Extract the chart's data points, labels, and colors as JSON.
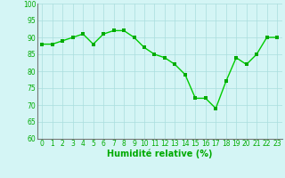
{
  "x": [
    0,
    1,
    2,
    3,
    4,
    5,
    6,
    7,
    8,
    9,
    10,
    11,
    12,
    13,
    14,
    15,
    16,
    17,
    18,
    19,
    20,
    21,
    22,
    23
  ],
  "y": [
    88,
    88,
    89,
    90,
    91,
    88,
    91,
    92,
    92,
    90,
    87,
    85,
    84,
    82,
    79,
    72,
    72,
    69,
    77,
    84,
    82,
    85,
    90,
    90
  ],
  "line_color": "#00cc00",
  "marker_color": "#00aa00",
  "bg_color": "#d4f5f5",
  "grid_color": "#aadddd",
  "xlabel": "Humidité relative (%)",
  "xlabel_color": "#00aa00",
  "ylim": [
    60,
    100
  ],
  "xlim": [
    -0.5,
    23.5
  ],
  "yticks": [
    60,
    65,
    70,
    75,
    80,
    85,
    90,
    95,
    100
  ],
  "xticks": [
    0,
    1,
    2,
    3,
    4,
    5,
    6,
    7,
    8,
    9,
    10,
    11,
    12,
    13,
    14,
    15,
    16,
    17,
    18,
    19,
    20,
    21,
    22,
    23
  ],
  "tick_color": "#00aa00",
  "tick_label_fontsize": 5.5,
  "xlabel_fontsize": 7,
  "line_width": 1.0,
  "marker_size": 2.5
}
